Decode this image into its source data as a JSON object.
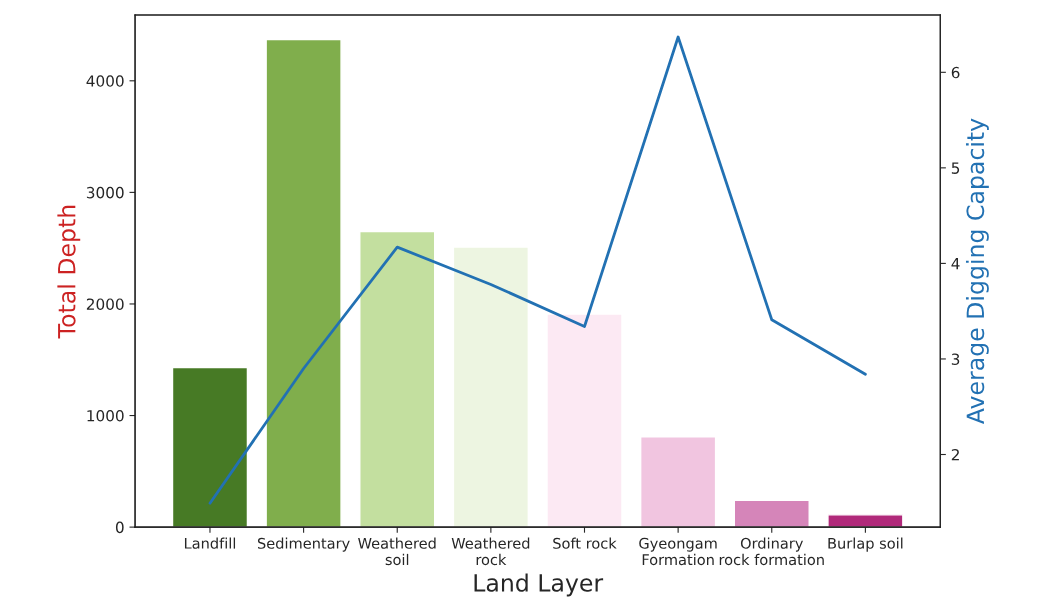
{
  "chart_data": {
    "type": "bar",
    "xlabel": "Land Layer",
    "ylabel": "Total Depth",
    "y2label": "Average Digging Capacity",
    "categories": [
      "Landfill",
      "Sedimentary",
      "Weathered\nsoil",
      "Weathered\nrock",
      "Soft rock",
      "Gyeongam\nFormation",
      "Ordinary\nrock formation",
      "Burlap soil"
    ],
    "ylim": [
      0,
      4590
    ],
    "yticks": [
      0,
      1000,
      2000,
      3000,
      4000
    ],
    "y2lim": [
      1.24,
      6.6
    ],
    "y2ticks": [
      2,
      3,
      4,
      5,
      6
    ],
    "series": [
      {
        "colors": [
          "#477a25",
          "#80ae4c",
          "#c3df9f",
          "#edf5e1",
          "#fce9f3",
          "#f1c5e0",
          "#d585b9",
          "#b0297a"
        ],
        "values": [
          1430,
          4370,
          2650,
          2510,
          1910,
          810,
          240,
          110
        ]
      },
      {
        "type": "line",
        "axis": "y2",
        "color": "#2271b3",
        "values": [
          1.49,
          2.9,
          4.17,
          3.78,
          3.34,
          6.37,
          3.41,
          2.84
        ]
      }
    ]
  }
}
